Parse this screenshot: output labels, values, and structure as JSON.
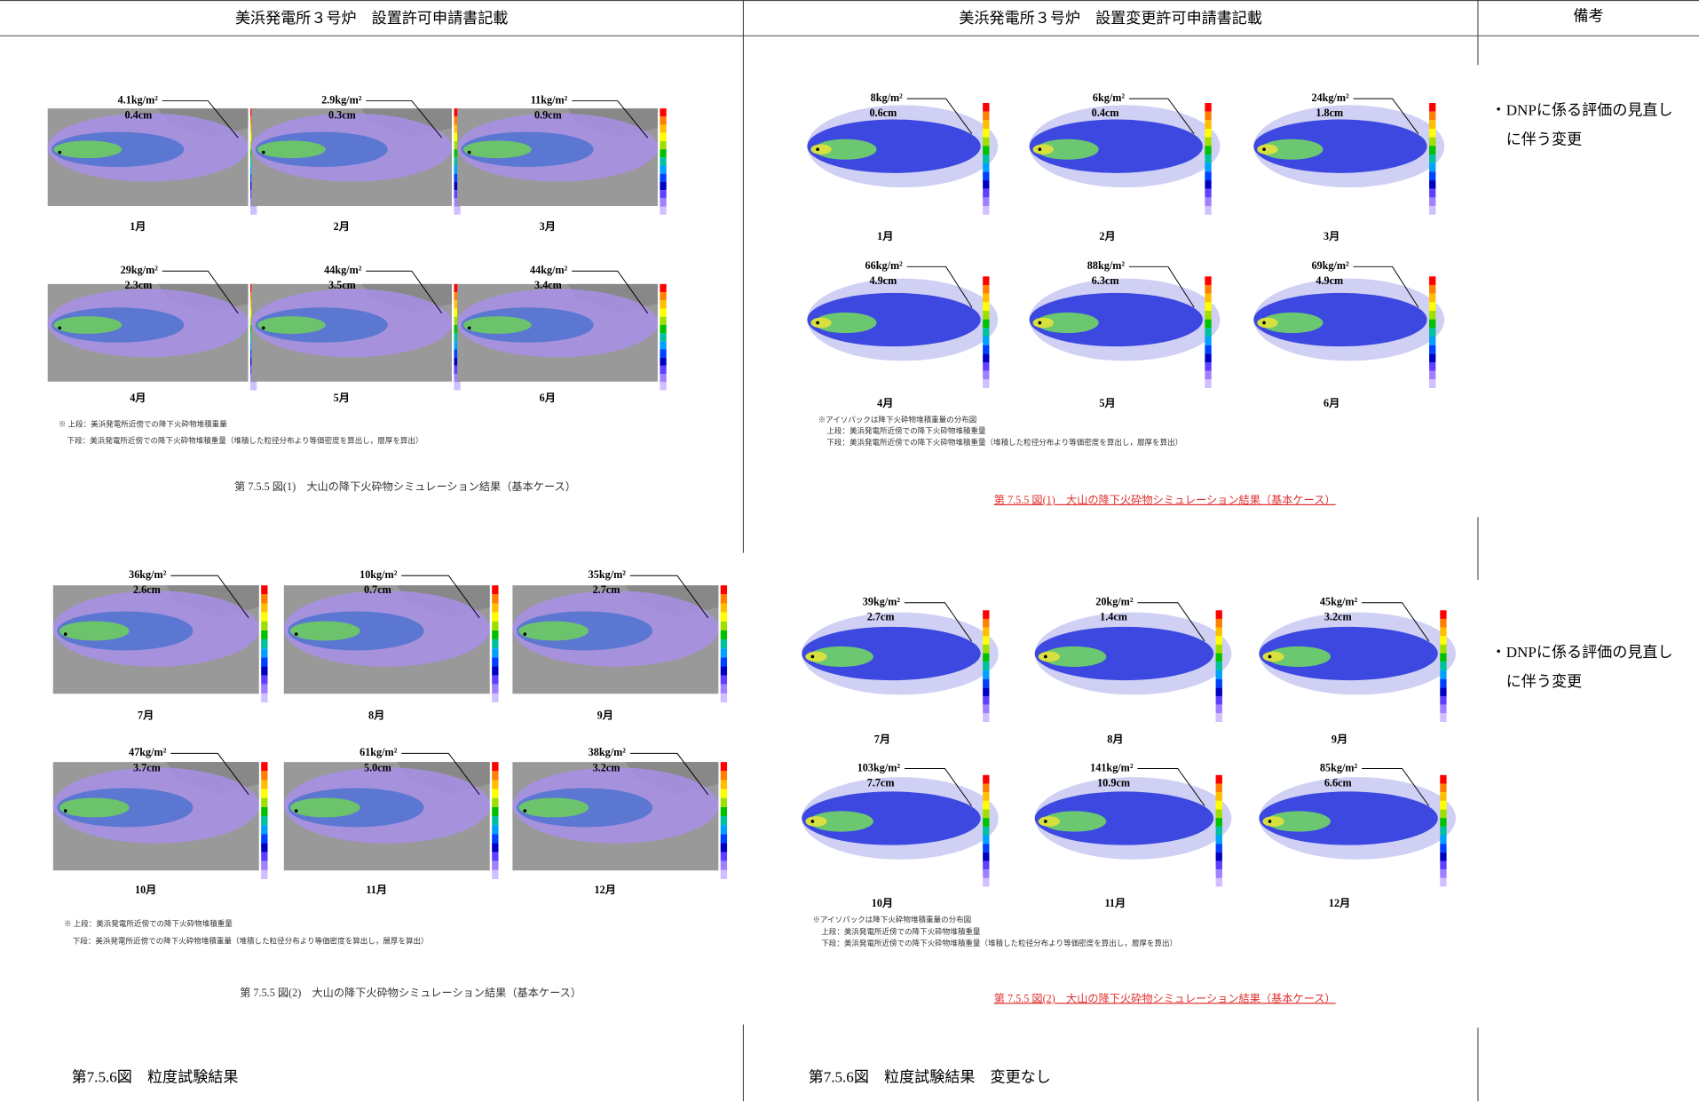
{
  "header": {
    "left": "美浜発電所３号炉　設置許可申請書記載",
    "right": "美浜発電所３号炉　設置変更許可申請書記載",
    "remarks": "備考"
  },
  "left": {
    "figures": [
      {
        "panels": [
          {
            "deposit": "4.1kg/m²",
            "thickness": "0.4cm",
            "month": "1月"
          },
          {
            "deposit": "2.9kg/m²",
            "thickness": "0.3cm",
            "month": "2月"
          },
          {
            "deposit": "11kg/m²",
            "thickness": "0.9cm",
            "month": "3月"
          },
          {
            "deposit": "29kg/m²",
            "thickness": "2.3cm",
            "month": "4月"
          },
          {
            "deposit": "44kg/m²",
            "thickness": "3.5cm",
            "month": "5月"
          },
          {
            "deposit": "44kg/m²",
            "thickness": "3.4cm",
            "month": "6月"
          }
        ],
        "notes": [
          "※ 上段：美浜発電所近傍での降下火砕物堆積重量",
          "下段：美浜発電所近傍での降下火砕物堆積重量（堆積した粒径分布より等価密度を算出し，層厚を算出）"
        ],
        "caption": "第 7.5.5 図(1)　大山の降下火砕物シミュレーション結果（基本ケース）"
      },
      {
        "panels": [
          {
            "deposit": "36kg/m²",
            "thickness": "2.6cm",
            "month": "7月"
          },
          {
            "deposit": "10kg/m²",
            "thickness": "0.7cm",
            "month": "8月"
          },
          {
            "deposit": "35kg/m²",
            "thickness": "2.7cm",
            "month": "9月"
          },
          {
            "deposit": "47kg/m²",
            "thickness": "3.7cm",
            "month": "10月"
          },
          {
            "deposit": "61kg/m²",
            "thickness": "5.0cm",
            "month": "11月"
          },
          {
            "deposit": "38kg/m²",
            "thickness": "3.2cm",
            "month": "12月"
          }
        ],
        "notes": [
          "※ 上段：美浜発電所近傍での降下火砕物堆積重量",
          "下段：美浜発電所近傍での降下火砕物堆積重量（堆積した粒径分布より等価密度を算出し，層厚を算出）"
        ],
        "caption": "第 7.5.5 図(2)　大山の降下火砕物シミュレーション結果（基本ケース）"
      }
    ],
    "footer": "第7.5.6図　粒度試験結果"
  },
  "right": {
    "figures": [
      {
        "panels": [
          {
            "deposit": "8kg/m²",
            "thickness": "0.6cm",
            "month": "1月"
          },
          {
            "deposit": "6kg/m²",
            "thickness": "0.4cm",
            "month": "2月"
          },
          {
            "deposit": "24kg/m²",
            "thickness": "1.8cm",
            "month": "3月"
          },
          {
            "deposit": "66kg/m²",
            "thickness": "4.9cm",
            "month": "4月"
          },
          {
            "deposit": "88kg/m²",
            "thickness": "6.3cm",
            "month": "5月"
          },
          {
            "deposit": "69kg/m²",
            "thickness": "4.9cm",
            "month": "6月"
          }
        ],
        "notes": [
          "※アイソパックは降下火砕物堆積重量の分布図",
          "上段：美浜発電所近傍での降下火砕物堆積重量",
          "下段：美浜発電所近傍での降下火砕物堆積重量（堆積した粒径分布より等価密度を算出し，層厚を算出）"
        ],
        "caption": "第 7.5.5 図(1)　大山の降下火砕物シミュレーション結果（基本ケース）"
      },
      {
        "panels": [
          {
            "deposit": "39kg/m²",
            "thickness": "2.7cm",
            "month": "7月"
          },
          {
            "deposit": "20kg/m²",
            "thickness": "1.4cm",
            "month": "8月"
          },
          {
            "deposit": "45kg/m²",
            "thickness": "3.2cm",
            "month": "9月"
          },
          {
            "deposit": "103kg/m²",
            "thickness": "7.7cm",
            "month": "10月"
          },
          {
            "deposit": "141kg/m²",
            "thickness": "10.9cm",
            "month": "11月"
          },
          {
            "deposit": "85kg/m²",
            "thickness": "6.6cm",
            "month": "12月"
          }
        ],
        "notes": [
          "※アイソパックは降下火砕物堆積重量の分布図",
          "上段：美浜発電所近傍での降下火砕物堆積重量",
          "下段：美浜発電所近傍での降下火砕物堆積重量（堆積した粒径分布より等価密度を算出し，層厚を算出）"
        ],
        "caption": "第 7.5.5 図(2)　大山の降下火砕物シミュレーション結果（基本ケース）"
      }
    ],
    "footer": "第7.5.6図　粒度試験結果　変更なし"
  },
  "remarks": {
    "entries": [
      [
        "・DNPに係る評価の見直し",
        "に伴う変更"
      ],
      [
        "・DNPに係る評価の見直し",
        "に伴う変更"
      ]
    ]
  }
}
